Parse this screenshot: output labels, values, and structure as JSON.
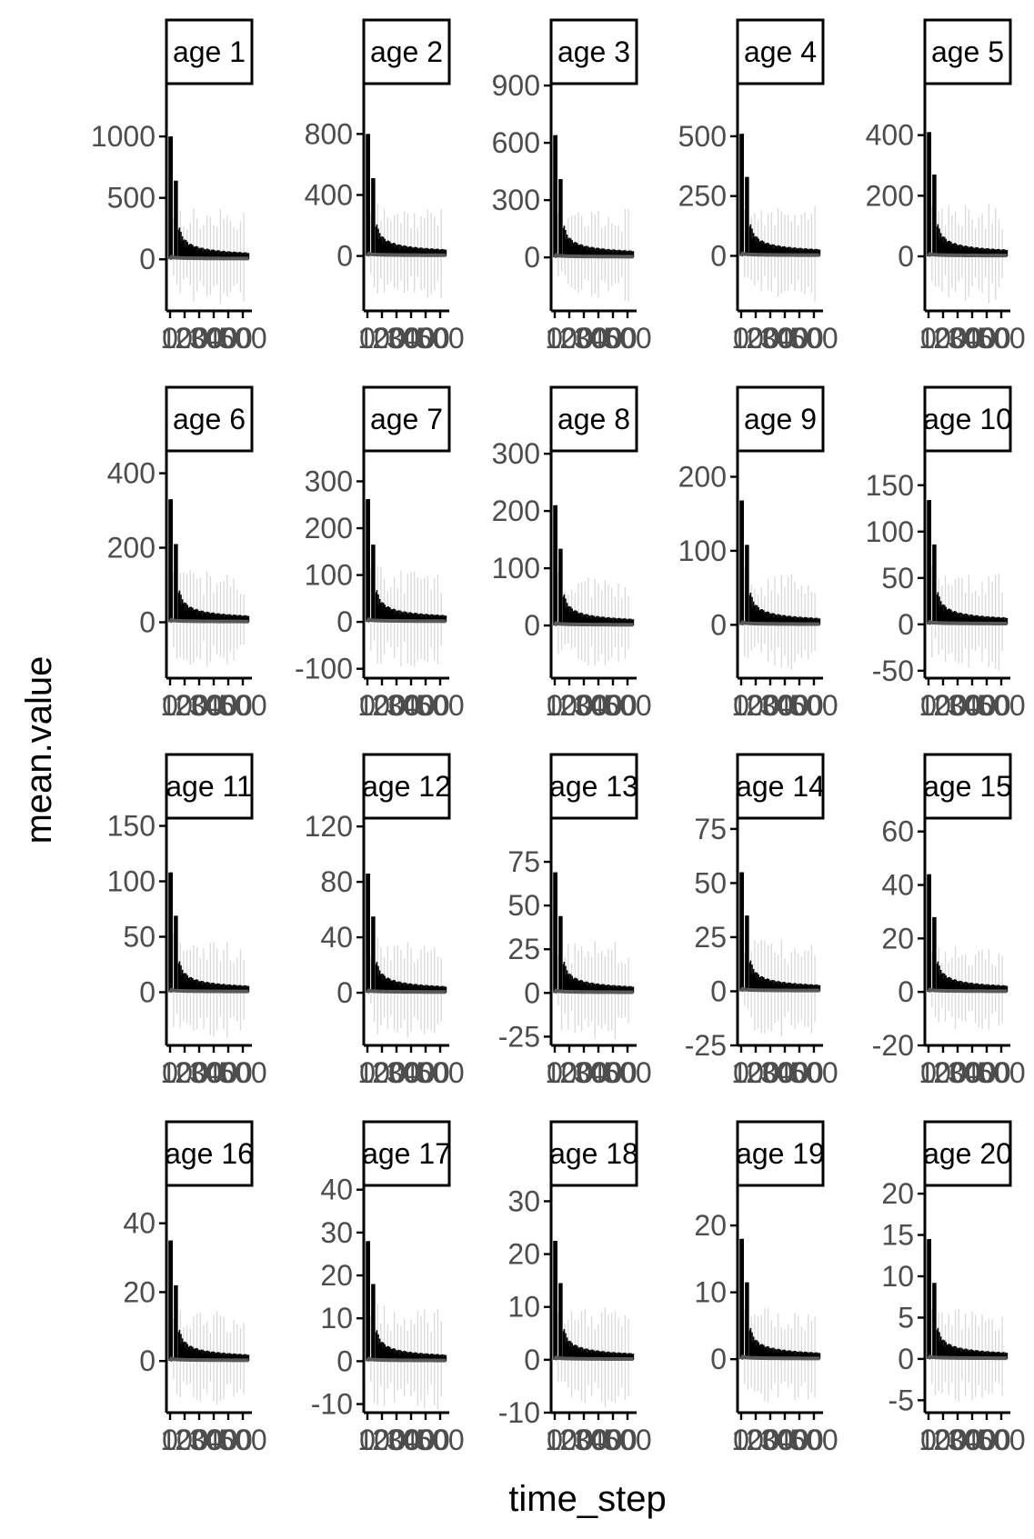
{
  "chart_data": {
    "type": "bar",
    "facet_layout": "4 rows x 5 columns",
    "xlabel": "time_step",
    "ylabel": "mean.value",
    "x_tick_labels": [
      "0",
      "100",
      "200",
      "300",
      "400",
      "500"
    ],
    "series_description": "mean.value per time_step with light grey error bars",
    "colors": {
      "bars": "#000000",
      "mean_line": "#595959",
      "error_bars": "#d9d9d9",
      "frame": "#000000",
      "tick_text": "#4d4d4d"
    },
    "panels": [
      {
        "strip": "age 1",
        "yticks": [
          0,
          500,
          1000
        ],
        "ylim": [
          -420,
          1430
        ],
        "peak": 1000,
        "second": 640,
        "err": 330
      },
      {
        "strip": "age 2",
        "yticks": [
          0,
          400,
          800
        ],
        "ylim": [
          -360,
          1130
        ],
        "peak": 800,
        "second": 510,
        "err": 260
      },
      {
        "strip": "age 3",
        "yticks": [
          0,
          300,
          600,
          900
        ],
        "ylim": [
          -280,
          910
        ],
        "peak": 640,
        "second": 410,
        "err": 210
      },
      {
        "strip": "age 4",
        "yticks": [
          0,
          250,
          500
        ],
        "ylim": [
          -230,
          720
        ],
        "peak": 510,
        "second": 330,
        "err": 170
      },
      {
        "strip": "age 5",
        "yticks": [
          0,
          200,
          400
        ],
        "ylim": [
          -180,
          570
        ],
        "peak": 410,
        "second": 270,
        "err": 140
      },
      {
        "strip": "age 6",
        "yticks": [
          0,
          200,
          400
        ],
        "ylim": [
          -150,
          460
        ],
        "peak": 330,
        "second": 210,
        "err": 110
      },
      {
        "strip": "age 7",
        "yticks": [
          -100,
          0,
          100,
          200,
          300
        ],
        "ylim": [
          -120,
          365
        ],
        "peak": 262,
        "second": 165,
        "err": 90
      },
      {
        "strip": "age 8",
        "yticks": [
          0,
          100,
          200,
          300
        ],
        "ylim": [
          -92,
          305
        ],
        "peak": 210,
        "second": 134,
        "err": 70
      },
      {
        "strip": "age 9",
        "yticks": [
          0,
          100,
          200
        ],
        "ylim": [
          -72,
          235
        ],
        "peak": 168,
        "second": 108,
        "err": 57
      },
      {
        "strip": "age 10",
        "yticks": [
          -50,
          0,
          50,
          100,
          150
        ],
        "ylim": [
          -58,
          187
        ],
        "peak": 134,
        "second": 86,
        "err": 45
      },
      {
        "strip": "age 11",
        "yticks": [
          0,
          50,
          100,
          150
        ],
        "ylim": [
          -48,
          157
        ],
        "peak": 108,
        "second": 69,
        "err": 37
      },
      {
        "strip": "age 12",
        "yticks": [
          0,
          40,
          80,
          120
        ],
        "ylim": [
          -38,
          126
        ],
        "peak": 86,
        "second": 55,
        "err": 30
      },
      {
        "strip": "age 13",
        "yticks": [
          -25,
          0,
          25,
          50,
          75
        ],
        "ylim": [
          -30,
          100
        ],
        "peak": 69,
        "second": 44,
        "err": 24
      },
      {
        "strip": "age 14",
        "yticks": [
          -25,
          0,
          25,
          50,
          75
        ],
        "ylim": [
          -25,
          80
        ],
        "peak": 55,
        "second": 35,
        "err": 19
      },
      {
        "strip": "age 15",
        "yticks": [
          -20,
          0,
          20,
          40,
          60
        ],
        "ylim": [
          -20,
          65
        ],
        "peak": 44,
        "second": 28,
        "err": 15
      },
      {
        "strip": "age 16",
        "yticks": [
          0,
          20,
          40
        ],
        "ylim": [
          -15,
          51
        ],
        "peak": 35,
        "second": 22,
        "err": 12
      },
      {
        "strip": "age 17",
        "yticks": [
          -10,
          0,
          10,
          20,
          30,
          40
        ],
        "ylim": [
          -12,
          41
        ],
        "peak": 28,
        "second": 18,
        "err": 10
      },
      {
        "strip": "age 18",
        "yticks": [
          -10,
          0,
          10,
          20,
          30
        ],
        "ylim": [
          -10,
          33
        ],
        "peak": 22.5,
        "second": 14.5,
        "err": 8
      },
      {
        "strip": "age 19",
        "yticks": [
          0,
          10,
          20
        ],
        "ylim": [
          -8,
          26
        ],
        "peak": 18,
        "second": 11.5,
        "err": 6.5
      },
      {
        "strip": "age 20",
        "yticks": [
          -5,
          0,
          5,
          10,
          15,
          20
        ],
        "ylim": [
          -6.5,
          21
        ],
        "peak": 14.5,
        "second": 9.2,
        "err": 5
      }
    ]
  }
}
